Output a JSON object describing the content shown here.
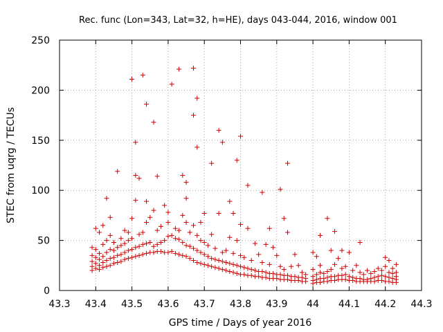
{
  "chart_data": {
    "type": "scatter",
    "title": "Rec. func (Lon=343, Lat=32, h=HE), days 043-044, 2016, window 001",
    "xlabel": "GPS time / Days of year 2016",
    "ylabel": "STEC from uqrg / TECUs",
    "xlim": [
      43.3,
      44.3
    ],
    "ylim": [
      0,
      250
    ],
    "xticks": [
      43.3,
      43.4,
      43.5,
      43.6,
      43.7,
      43.8,
      43.9,
      44.0,
      44.1,
      44.2,
      44.3
    ],
    "xtick_labels": [
      "43.3",
      "43.4",
      "43.5",
      "43.6",
      "43.7",
      "43.8",
      "43.9",
      "44",
      "44.1",
      "44.2",
      "44.3"
    ],
    "yticks": [
      0,
      50,
      100,
      150,
      200,
      250
    ],
    "ytick_labels": [
      "0",
      "50",
      "100",
      "150",
      "200",
      "250"
    ],
    "grid": true,
    "marker": "plus",
    "color": "#cc0000",
    "points": [
      [
        43.39,
        20
      ],
      [
        43.39,
        24
      ],
      [
        43.39,
        29
      ],
      [
        43.39,
        35
      ],
      [
        43.39,
        43
      ],
      [
        43.4,
        22
      ],
      [
        43.4,
        27
      ],
      [
        43.4,
        33
      ],
      [
        43.4,
        41
      ],
      [
        43.4,
        62
      ],
      [
        43.41,
        21
      ],
      [
        43.41,
        25
      ],
      [
        43.41,
        31
      ],
      [
        43.41,
        37
      ],
      [
        43.41,
        58
      ],
      [
        43.42,
        23
      ],
      [
        43.42,
        28
      ],
      [
        43.42,
        34
      ],
      [
        43.42,
        46
      ],
      [
        43.42,
        65
      ],
      [
        43.43,
        24
      ],
      [
        43.43,
        30
      ],
      [
        43.43,
        38
      ],
      [
        43.43,
        50
      ],
      [
        43.43,
        92
      ],
      [
        43.44,
        25
      ],
      [
        43.44,
        32
      ],
      [
        43.44,
        41
      ],
      [
        43.44,
        55
      ],
      [
        43.44,
        73
      ],
      [
        43.45,
        27
      ],
      [
        43.45,
        33
      ],
      [
        43.45,
        40
      ],
      [
        43.45,
        48
      ],
      [
        43.46,
        28
      ],
      [
        43.46,
        35
      ],
      [
        43.46,
        43
      ],
      [
        43.46,
        119
      ],
      [
        43.47,
        29
      ],
      [
        43.47,
        36
      ],
      [
        43.47,
        45
      ],
      [
        43.47,
        52
      ],
      [
        43.48,
        31
      ],
      [
        43.48,
        38
      ],
      [
        43.48,
        47
      ],
      [
        43.48,
        60
      ],
      [
        43.49,
        32
      ],
      [
        43.49,
        40
      ],
      [
        43.49,
        50
      ],
      [
        43.49,
        58
      ],
      [
        43.5,
        33
      ],
      [
        43.5,
        41
      ],
      [
        43.5,
        52
      ],
      [
        43.5,
        72
      ],
      [
        43.5,
        211
      ],
      [
        43.51,
        34
      ],
      [
        43.51,
        43
      ],
      [
        43.51,
        90
      ],
      [
        43.51,
        115
      ],
      [
        43.51,
        148
      ],
      [
        43.52,
        35
      ],
      [
        43.52,
        44
      ],
      [
        43.52,
        56
      ],
      [
        43.52,
        112
      ],
      [
        43.53,
        36
      ],
      [
        43.53,
        46
      ],
      [
        43.53,
        58
      ],
      [
        43.53,
        215
      ],
      [
        43.54,
        37
      ],
      [
        43.54,
        47
      ],
      [
        43.54,
        68
      ],
      [
        43.54,
        89
      ],
      [
        43.54,
        186
      ],
      [
        43.55,
        38
      ],
      [
        43.55,
        48
      ],
      [
        43.55,
        73
      ],
      [
        43.56,
        38
      ],
      [
        43.56,
        44
      ],
      [
        43.56,
        80
      ],
      [
        43.56,
        168
      ],
      [
        43.57,
        39
      ],
      [
        43.57,
        46
      ],
      [
        43.57,
        60
      ],
      [
        43.57,
        114
      ],
      [
        43.58,
        39
      ],
      [
        43.58,
        48
      ],
      [
        43.58,
        64
      ],
      [
        43.59,
        38
      ],
      [
        43.59,
        50
      ],
      [
        43.59,
        85
      ],
      [
        43.6,
        38
      ],
      [
        43.6,
        54
      ],
      [
        43.6,
        68
      ],
      [
        43.6,
        78
      ],
      [
        43.61,
        39
      ],
      [
        43.61,
        55
      ],
      [
        43.61,
        206
      ],
      [
        43.62,
        37
      ],
      [
        43.62,
        52
      ],
      [
        43.62,
        62
      ],
      [
        43.63,
        36
      ],
      [
        43.63,
        51
      ],
      [
        43.63,
        60
      ],
      [
        43.63,
        221
      ],
      [
        43.64,
        35
      ],
      [
        43.64,
        48
      ],
      [
        43.64,
        75
      ],
      [
        43.64,
        115
      ],
      [
        43.65,
        34
      ],
      [
        43.65,
        45
      ],
      [
        43.65,
        68
      ],
      [
        43.65,
        92
      ],
      [
        43.65,
        108
      ],
      [
        43.66,
        32
      ],
      [
        43.66,
        44
      ],
      [
        43.66,
        58
      ],
      [
        43.67,
        30
      ],
      [
        43.67,
        42
      ],
      [
        43.67,
        65
      ],
      [
        43.67,
        175
      ],
      [
        43.67,
        222
      ],
      [
        43.68,
        28
      ],
      [
        43.68,
        40
      ],
      [
        43.68,
        55
      ],
      [
        43.68,
        143
      ],
      [
        43.68,
        192
      ],
      [
        43.69,
        27
      ],
      [
        43.69,
        38
      ],
      [
        43.69,
        50
      ],
      [
        43.69,
        68
      ],
      [
        43.7,
        26
      ],
      [
        43.7,
        36
      ],
      [
        43.7,
        48
      ],
      [
        43.7,
        77
      ],
      [
        43.71,
        25
      ],
      [
        43.71,
        34
      ],
      [
        43.71,
        45
      ],
      [
        43.72,
        24
      ],
      [
        43.72,
        32
      ],
      [
        43.72,
        56
      ],
      [
        43.72,
        127
      ],
      [
        43.73,
        23
      ],
      [
        43.73,
        31
      ],
      [
        43.73,
        42
      ],
      [
        43.74,
        22
      ],
      [
        43.74,
        30
      ],
      [
        43.74,
        77
      ],
      [
        43.74,
        160
      ],
      [
        43.75,
        21
      ],
      [
        43.75,
        29
      ],
      [
        43.75,
        38
      ],
      [
        43.75,
        148
      ],
      [
        43.76,
        20
      ],
      [
        43.76,
        28
      ],
      [
        43.76,
        40
      ],
      [
        43.77,
        19
      ],
      [
        43.77,
        27
      ],
      [
        43.77,
        53
      ],
      [
        43.77,
        89
      ],
      [
        43.78,
        18
      ],
      [
        43.78,
        26
      ],
      [
        43.78,
        37
      ],
      [
        43.78,
        77
      ],
      [
        43.79,
        17
      ],
      [
        43.79,
        25
      ],
      [
        43.79,
        50
      ],
      [
        43.79,
        130
      ],
      [
        43.8,
        16
      ],
      [
        43.8,
        24
      ],
      [
        43.8,
        35
      ],
      [
        43.8,
        66
      ],
      [
        43.8,
        154
      ],
      [
        43.81,
        16
      ],
      [
        43.81,
        23
      ],
      [
        43.81,
        33
      ],
      [
        43.82,
        15
      ],
      [
        43.82,
        22
      ],
      [
        43.82,
        62
      ],
      [
        43.82,
        105
      ],
      [
        43.83,
        15
      ],
      [
        43.83,
        21
      ],
      [
        43.83,
        30
      ],
      [
        43.84,
        14
      ],
      [
        43.84,
        20
      ],
      [
        43.84,
        47
      ],
      [
        43.85,
        14
      ],
      [
        43.85,
        19
      ],
      [
        43.85,
        36
      ],
      [
        43.86,
        13
      ],
      [
        43.86,
        19
      ],
      [
        43.86,
        28
      ],
      [
        43.86,
        98
      ],
      [
        43.87,
        13
      ],
      [
        43.87,
        18
      ],
      [
        43.87,
        46
      ],
      [
        43.88,
        12
      ],
      [
        43.88,
        17
      ],
      [
        43.88,
        26
      ],
      [
        43.88,
        62
      ],
      [
        43.89,
        12
      ],
      [
        43.89,
        17
      ],
      [
        43.89,
        43
      ],
      [
        43.9,
        12
      ],
      [
        43.9,
        16
      ],
      [
        43.9,
        35
      ],
      [
        43.91,
        11
      ],
      [
        43.91,
        16
      ],
      [
        43.91,
        24
      ],
      [
        43.91,
        101
      ],
      [
        43.92,
        11
      ],
      [
        43.92,
        15
      ],
      [
        43.92,
        72
      ],
      [
        43.92,
        21
      ],
      [
        43.93,
        11
      ],
      [
        43.93,
        15
      ],
      [
        43.93,
        58
      ],
      [
        43.93,
        127
      ],
      [
        43.94,
        10
      ],
      [
        43.94,
        14
      ],
      [
        43.94,
        24
      ],
      [
        43.95,
        10
      ],
      [
        43.95,
        14
      ],
      [
        43.95,
        36
      ],
      [
        43.96,
        10
      ],
      [
        43.96,
        13
      ],
      [
        43.96,
        25
      ],
      [
        43.97,
        9
      ],
      [
        43.97,
        13
      ],
      [
        43.97,
        18
      ],
      [
        43.98,
        9
      ],
      [
        43.98,
        12
      ],
      [
        43.98,
        16
      ],
      [
        44.0,
        7
      ],
      [
        44.0,
        10
      ],
      [
        44.0,
        14
      ],
      [
        44.0,
        21
      ],
      [
        44.0,
        38
      ],
      [
        44.01,
        8
      ],
      [
        44.01,
        11
      ],
      [
        44.01,
        16
      ],
      [
        44.01,
        34
      ],
      [
        44.02,
        8
      ],
      [
        44.02,
        12
      ],
      [
        44.02,
        18
      ],
      [
        44.02,
        25
      ],
      [
        44.02,
        55
      ],
      [
        44.03,
        9
      ],
      [
        44.03,
        12
      ],
      [
        44.03,
        17
      ],
      [
        44.04,
        9
      ],
      [
        44.04,
        13
      ],
      [
        44.04,
        19
      ],
      [
        44.04,
        72
      ],
      [
        44.05,
        10
      ],
      [
        44.05,
        14
      ],
      [
        44.05,
        21
      ],
      [
        44.05,
        40
      ],
      [
        44.06,
        10
      ],
      [
        44.06,
        14
      ],
      [
        44.06,
        26
      ],
      [
        44.06,
        59
      ],
      [
        44.07,
        11
      ],
      [
        44.07,
        15
      ],
      [
        44.07,
        32
      ],
      [
        44.08,
        11
      ],
      [
        44.08,
        15
      ],
      [
        44.08,
        22
      ],
      [
        44.08,
        40
      ],
      [
        44.09,
        11
      ],
      [
        44.09,
        16
      ],
      [
        44.09,
        24
      ],
      [
        44.1,
        10
      ],
      [
        44.1,
        14
      ],
      [
        44.1,
        38
      ],
      [
        44.11,
        10
      ],
      [
        44.11,
        13
      ],
      [
        44.11,
        20
      ],
      [
        44.12,
        9
      ],
      [
        44.12,
        12
      ],
      [
        44.12,
        25
      ],
      [
        44.13,
        9
      ],
      [
        44.13,
        12
      ],
      [
        44.13,
        18
      ],
      [
        44.13,
        48
      ],
      [
        44.14,
        9
      ],
      [
        44.14,
        11
      ],
      [
        44.14,
        16
      ],
      [
        44.15,
        9
      ],
      [
        44.15,
        11
      ],
      [
        44.15,
        20
      ],
      [
        44.16,
        9
      ],
      [
        44.16,
        12
      ],
      [
        44.16,
        17
      ],
      [
        44.17,
        9
      ],
      [
        44.17,
        13
      ],
      [
        44.17,
        19
      ],
      [
        44.18,
        10
      ],
      [
        44.18,
        14
      ],
      [
        44.18,
        22
      ],
      [
        44.19,
        10
      ],
      [
        44.19,
        15
      ],
      [
        44.19,
        20
      ],
      [
        44.2,
        9
      ],
      [
        44.2,
        14
      ],
      [
        44.2,
        24
      ],
      [
        44.2,
        33
      ],
      [
        44.21,
        9
      ],
      [
        44.21,
        13
      ],
      [
        44.21,
        18
      ],
      [
        44.21,
        30
      ],
      [
        44.22,
        8
      ],
      [
        44.22,
        12
      ],
      [
        44.22,
        17
      ],
      [
        44.22,
        22
      ],
      [
        44.23,
        8
      ],
      [
        44.23,
        11
      ],
      [
        44.23,
        14
      ],
      [
        44.23,
        18
      ],
      [
        44.23,
        26
      ]
    ]
  }
}
